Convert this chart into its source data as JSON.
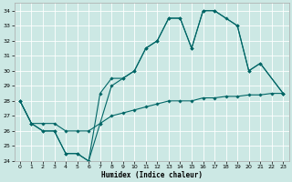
{
  "xlabel": "Humidex (Indice chaleur)",
  "xlim": [
    -0.5,
    23.5
  ],
  "ylim": [
    24,
    34.5
  ],
  "yticks": [
    24,
    25,
    26,
    27,
    28,
    29,
    30,
    31,
    32,
    33,
    34
  ],
  "xticks": [
    0,
    1,
    2,
    3,
    4,
    5,
    6,
    7,
    8,
    9,
    10,
    11,
    12,
    13,
    14,
    15,
    16,
    17,
    18,
    19,
    20,
    21,
    22,
    23
  ],
  "bg_color": "#cce8e4",
  "line_color": "#006666",
  "grid_color": "#ffffff",
  "series": [
    {
      "x": [
        0,
        1,
        2,
        3,
        4,
        5,
        6,
        7,
        8,
        9,
        10,
        11,
        12,
        13,
        14,
        15,
        16,
        17,
        18,
        19,
        20,
        21,
        23
      ],
      "y": [
        28,
        26.5,
        26,
        26,
        24.5,
        24.5,
        24,
        28.5,
        29.5,
        29.5,
        30,
        31.5,
        32,
        33.5,
        33.5,
        31.5,
        34,
        34,
        33.5,
        33,
        30,
        30.5,
        28.5
      ]
    },
    {
      "x": [
        0,
        1,
        2,
        3,
        4,
        5,
        6,
        7,
        8,
        9,
        10,
        11,
        12,
        13,
        14,
        15,
        16,
        17,
        19,
        20,
        21,
        23
      ],
      "y": [
        28,
        26.5,
        26,
        26,
        24.5,
        24.5,
        24,
        26.5,
        29,
        29.5,
        30,
        31.5,
        32,
        33.5,
        33.5,
        31.5,
        34,
        34,
        33,
        30,
        30.5,
        28.5
      ]
    },
    {
      "x": [
        0,
        1,
        2,
        3,
        4,
        5,
        6,
        7,
        8,
        9,
        10,
        11,
        12,
        13,
        14,
        15,
        16,
        17,
        18,
        19,
        20,
        21,
        22,
        23
      ],
      "y": [
        28,
        26.5,
        26.5,
        26.5,
        26,
        26,
        26,
        26.5,
        27,
        27.2,
        27.4,
        27.6,
        27.8,
        28,
        28,
        28,
        28.2,
        28.2,
        28.3,
        28.3,
        28.4,
        28.4,
        28.5,
        28.5
      ]
    }
  ]
}
